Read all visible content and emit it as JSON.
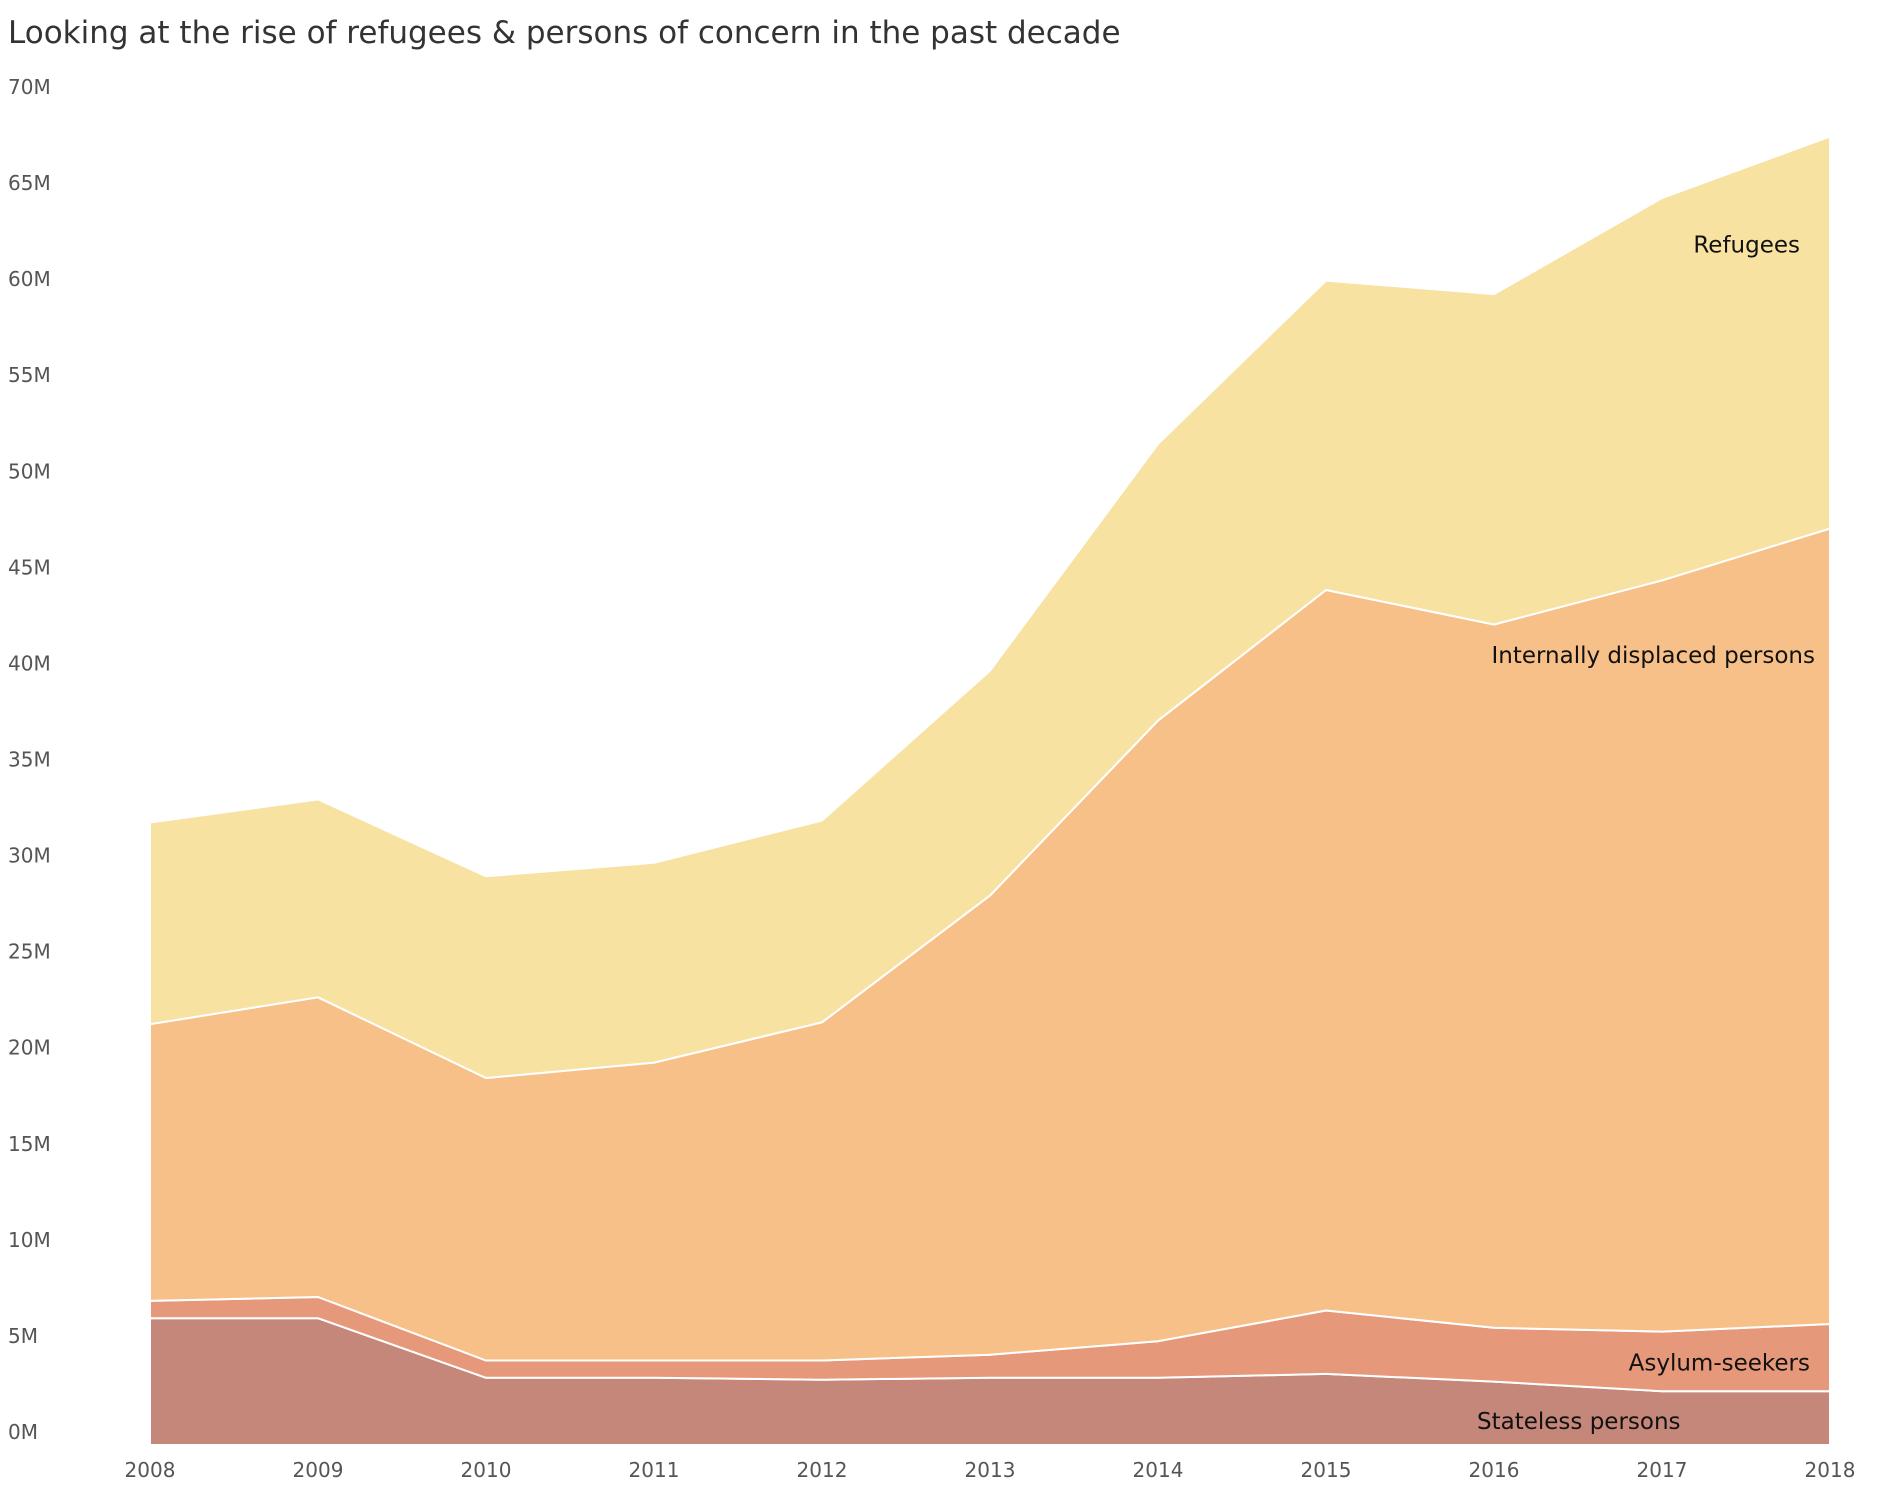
{
  "chart_data": {
    "type": "area",
    "stacked": true,
    "title": "Looking at the rise of refugees & persons of concern in the past decade",
    "x": [
      "2008",
      "2009",
      "2010",
      "2011",
      "2012",
      "2013",
      "2014",
      "2015",
      "2016",
      "2017",
      "2018"
    ],
    "ylim": [
      0,
      70000000
    ],
    "y_ticks": [
      0,
      5000000,
      10000000,
      15000000,
      20000000,
      25000000,
      30000000,
      35000000,
      40000000,
      45000000,
      50000000,
      55000000,
      60000000,
      65000000,
      70000000
    ],
    "y_tick_labels": [
      "0M",
      "5M",
      "10M",
      "15M",
      "20M",
      "25M",
      "30M",
      "35M",
      "40M",
      "45M",
      "50M",
      "55M",
      "60M",
      "65M",
      "70M"
    ],
    "grid": false,
    "legend": "inline labels",
    "series": [
      {
        "name": "Stateless persons",
        "color": "#c4877a",
        "values": [
          6600000,
          6600000,
          3500000,
          3500000,
          3400000,
          3500000,
          3500000,
          3700000,
          3300000,
          2800000,
          2800000
        ]
      },
      {
        "name": "Asylum-seekers",
        "color": "#e6987a",
        "values": [
          900000,
          1100000,
          900000,
          900000,
          1000000,
          1200000,
          1900000,
          3300000,
          2800000,
          3100000,
          3500000
        ]
      },
      {
        "name": "Internally displaced persons",
        "color": "#f7c088",
        "values": [
          14400000,
          15600000,
          14700000,
          15500000,
          17600000,
          23900000,
          32300000,
          37500000,
          36600000,
          39100000,
          41400000
        ]
      },
      {
        "name": "Refugees",
        "color": "#f7e2a2",
        "values": [
          10500000,
          10300000,
          10500000,
          10400000,
          10500000,
          11700000,
          14400000,
          16100000,
          17200000,
          19900000,
          20400000
        ]
      }
    ]
  }
}
